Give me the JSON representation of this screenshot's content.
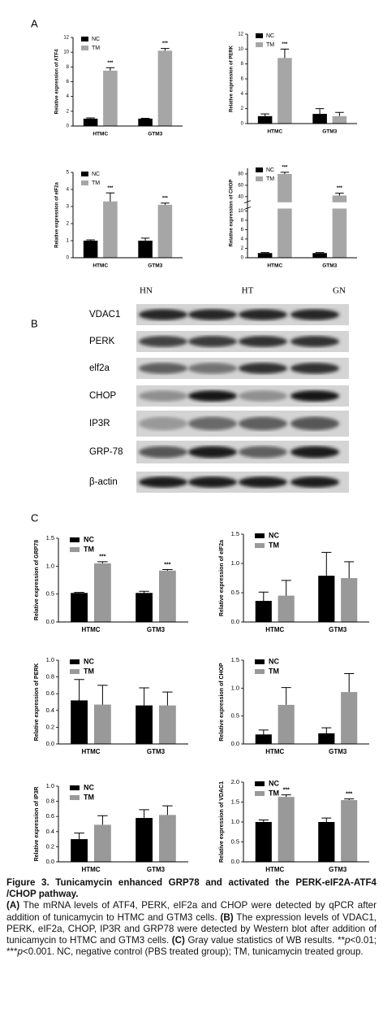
{
  "panels": [
    "A",
    "B",
    "C"
  ],
  "chart_data": [
    {
      "type": "bar",
      "ylabel": "Relative expression of ATF4",
      "categories": [
        "HTMC",
        "GTM3"
      ],
      "series": [
        {
          "name": "NC",
          "color": "#000000",
          "values": [
            1.0,
            1.0
          ],
          "errors": [
            0.1,
            0.05
          ]
        },
        {
          "name": "TM",
          "color": "#a6a6a6",
          "values": [
            7.5,
            10.2
          ],
          "errors": [
            0.4,
            0.3
          ],
          "annotations": [
            "***",
            "***"
          ]
        }
      ],
      "ylim": [
        0,
        12
      ],
      "yticks": [
        0,
        2,
        4,
        6,
        8,
        10,
        12
      ]
    },
    {
      "type": "bar",
      "ylabel": "Relative expression of PERK",
      "categories": [
        "HTMC",
        "GTM3"
      ],
      "series": [
        {
          "name": "NC",
          "color": "#000000",
          "values": [
            1.0,
            1.3
          ],
          "errors": [
            0.3,
            0.7
          ]
        },
        {
          "name": "TM",
          "color": "#a6a6a6",
          "values": [
            8.8,
            1.0
          ],
          "errors": [
            1.2,
            0.5
          ],
          "annotations": [
            "***",
            null
          ]
        }
      ],
      "ylim": [
        0,
        12
      ],
      "yticks": [
        0,
        2,
        4,
        6,
        8,
        10,
        12
      ]
    },
    {
      "type": "bar",
      "ylabel": "Relative expression of eIF2a",
      "categories": [
        "HTMC",
        "GTM3"
      ],
      "series": [
        {
          "name": "NC",
          "color": "#000000",
          "values": [
            1.0,
            1.0
          ],
          "errors": [
            0.05,
            0.15
          ]
        },
        {
          "name": "TM",
          "color": "#a6a6a6",
          "values": [
            3.3,
            3.1
          ],
          "errors": [
            0.5,
            0.1
          ],
          "annotations": [
            "***",
            "***"
          ]
        }
      ],
      "ylim": [
        0,
        5
      ],
      "yticks": [
        0,
        1,
        2,
        3,
        4,
        5
      ]
    },
    {
      "type": "bar",
      "ylabel": "Relative expression of CHOP",
      "categories": [
        "HTMC",
        "GTM3"
      ],
      "series": [
        {
          "name": "NC",
          "color": "#000000",
          "values": [
            1.0,
            1.0
          ],
          "errors": [
            0.1,
            0.1
          ]
        },
        {
          "name": "TM",
          "color": "#a6a6a6",
          "values": [
            80,
            42
          ],
          "errors": [
            3,
            4
          ],
          "annotations": [
            "***",
            "***"
          ]
        }
      ],
      "ylim": [
        0,
        90
      ],
      "ybreak": [
        10.5,
        30
      ],
      "yticks": [
        0,
        2,
        4,
        6,
        8,
        10,
        40,
        60,
        80
      ]
    },
    {
      "type": "bar",
      "ylabel": "Relative expression of GRP78",
      "categories": [
        "HTMC",
        "GTM3"
      ],
      "series": [
        {
          "name": "NC",
          "color": "#000000",
          "values": [
            0.52,
            0.52
          ],
          "errors": [
            0.01,
            0.03
          ]
        },
        {
          "name": "TM",
          "color": "#999999",
          "values": [
            1.05,
            0.92
          ],
          "errors": [
            0.03,
            0.02
          ],
          "annotations": [
            "***",
            "***"
          ]
        }
      ],
      "ylim": [
        0,
        1.5
      ],
      "yticks": [
        {
          "value": 0,
          "label": "0.0"
        },
        {
          "value": 0.5,
          "label": "0.5"
        },
        {
          "value": 1,
          "label": "1.0"
        },
        {
          "value": 1.5,
          "label": "1.5"
        }
      ]
    },
    {
      "type": "bar",
      "ylabel": "Relative expression of eIF2a",
      "categories": [
        "HTMC",
        "GTM3"
      ],
      "series": [
        {
          "name": "NC",
          "color": "#000000",
          "values": [
            0.36,
            0.79
          ],
          "errors": [
            0.15,
            0.4
          ]
        },
        {
          "name": "TM",
          "color": "#999999",
          "values": [
            0.45,
            0.75
          ],
          "errors": [
            0.26,
            0.28
          ]
        }
      ],
      "ylim": [
        0,
        1.5
      ],
      "yticks": [
        {
          "value": 0,
          "label": "0.0"
        },
        {
          "value": 0.5,
          "label": "0.5"
        },
        {
          "value": 1,
          "label": "1.0"
        },
        {
          "value": 1.5,
          "label": "1.5"
        }
      ]
    },
    {
      "type": "bar",
      "ylabel": "Relative expression of PERK",
      "categories": [
        "HTMC",
        "GTM3"
      ],
      "series": [
        {
          "name": "NC",
          "color": "#000000",
          "values": [
            0.52,
            0.46
          ],
          "errors": [
            0.25,
            0.21
          ]
        },
        {
          "name": "TM",
          "color": "#999999",
          "values": [
            0.47,
            0.46
          ],
          "errors": [
            0.23,
            0.16
          ]
        }
      ],
      "ylim": [
        0,
        1
      ],
      "yticks": [
        {
          "value": 0,
          "label": "0.0"
        },
        {
          "value": 0.2,
          "label": "0.2"
        },
        {
          "value": 0.4,
          "label": "0.4"
        },
        {
          "value": 0.6,
          "label": "0.6"
        },
        {
          "value": 0.8,
          "label": "0.8"
        },
        {
          "value": 1,
          "label": "1.0"
        }
      ]
    },
    {
      "type": "bar",
      "ylabel": "Relative expression of CHOP",
      "categories": [
        "HTMC",
        "GTM3"
      ],
      "series": [
        {
          "name": "NC",
          "color": "#000000",
          "values": [
            0.17,
            0.19
          ],
          "errors": [
            0.08,
            0.1
          ]
        },
        {
          "name": "TM",
          "color": "#999999",
          "values": [
            0.7,
            0.93
          ],
          "errors": [
            0.31,
            0.33
          ]
        }
      ],
      "ylim": [
        0,
        1.5
      ],
      "yticks": [
        {
          "value": 0,
          "label": "0.0"
        },
        {
          "value": 0.5,
          "label": "0.5"
        },
        {
          "value": 1,
          "label": "1.0"
        },
        {
          "value": 1.5,
          "label": "1.5"
        }
      ]
    },
    {
      "type": "bar",
      "ylabel": "Relative expression of IP3R",
      "categories": [
        "HTMC",
        "GTM3"
      ],
      "series": [
        {
          "name": "NC",
          "color": "#000000",
          "values": [
            0.3,
            0.58
          ],
          "errors": [
            0.08,
            0.11
          ]
        },
        {
          "name": "TM",
          "color": "#999999",
          "values": [
            0.49,
            0.62
          ],
          "errors": [
            0.12,
            0.12
          ]
        }
      ],
      "ylim": [
        0,
        1
      ],
      "yticks": [
        {
          "value": 0,
          "label": "0.0"
        },
        {
          "value": 0.2,
          "label": "0.2"
        },
        {
          "value": 0.4,
          "label": "0.4"
        },
        {
          "value": 0.6,
          "label": "0.6"
        },
        {
          "value": 0.8,
          "label": "0.8"
        },
        {
          "value": 1,
          "label": "1.0"
        }
      ]
    },
    {
      "type": "bar",
      "ylabel": "Relative expression of VDAC1",
      "categories": [
        "HTMC",
        "GTM3"
      ],
      "series": [
        {
          "name": "NC",
          "color": "#000000",
          "values": [
            1.0,
            1.0
          ],
          "errors": [
            0.05,
            0.1
          ]
        },
        {
          "name": "TM",
          "color": "#999999",
          "values": [
            1.63,
            1.55
          ],
          "errors": [
            0.05,
            0.03
          ],
          "annotations": [
            "***",
            "***"
          ]
        }
      ],
      "ylim": [
        0,
        2
      ],
      "yticks": [
        {
          "value": 0,
          "label": "0.0"
        },
        {
          "value": 0.5,
          "label": "0.5"
        },
        {
          "value": 1,
          "label": "1.0"
        },
        {
          "value": 1.5,
          "label": "1.5"
        },
        {
          "value": 2,
          "label": "2.0"
        }
      ]
    }
  ],
  "blot": {
    "columns": [
      "HN",
      "HT",
      "GN"
    ],
    "rows": [
      "VDAC1",
      "PERK",
      "elf2a",
      "CHOP",
      "IP3R",
      "GRP-78",
      "β-actin"
    ]
  },
  "caption": {
    "title": "Figure 3. Tunicamycin enhanced GRP78 and activated the PERK-eIF2A-ATF4 /CHOP pathway.",
    "parts": [
      "(A)",
      " The mRNA levels of ATF4, PERK, eIF2a and CHOP were detected by qPCR after addition of tunicamycin to HTMC and GTM3 cells. ",
      "(B)",
      " The expression levels of VDAC1, PERK, eIF2a, CHOP, IP3R and GRP78 were detected by Western blot after addition of tunicamycin to HTMC and GTM3 cells. ",
      "(C)",
      " Gray value statistics of WB results. **",
      "p",
      "<0.01; ***",
      "p",
      "<0.001. NC, negative control (PBS treated group); TM, tunicamycin treated group."
    ]
  }
}
